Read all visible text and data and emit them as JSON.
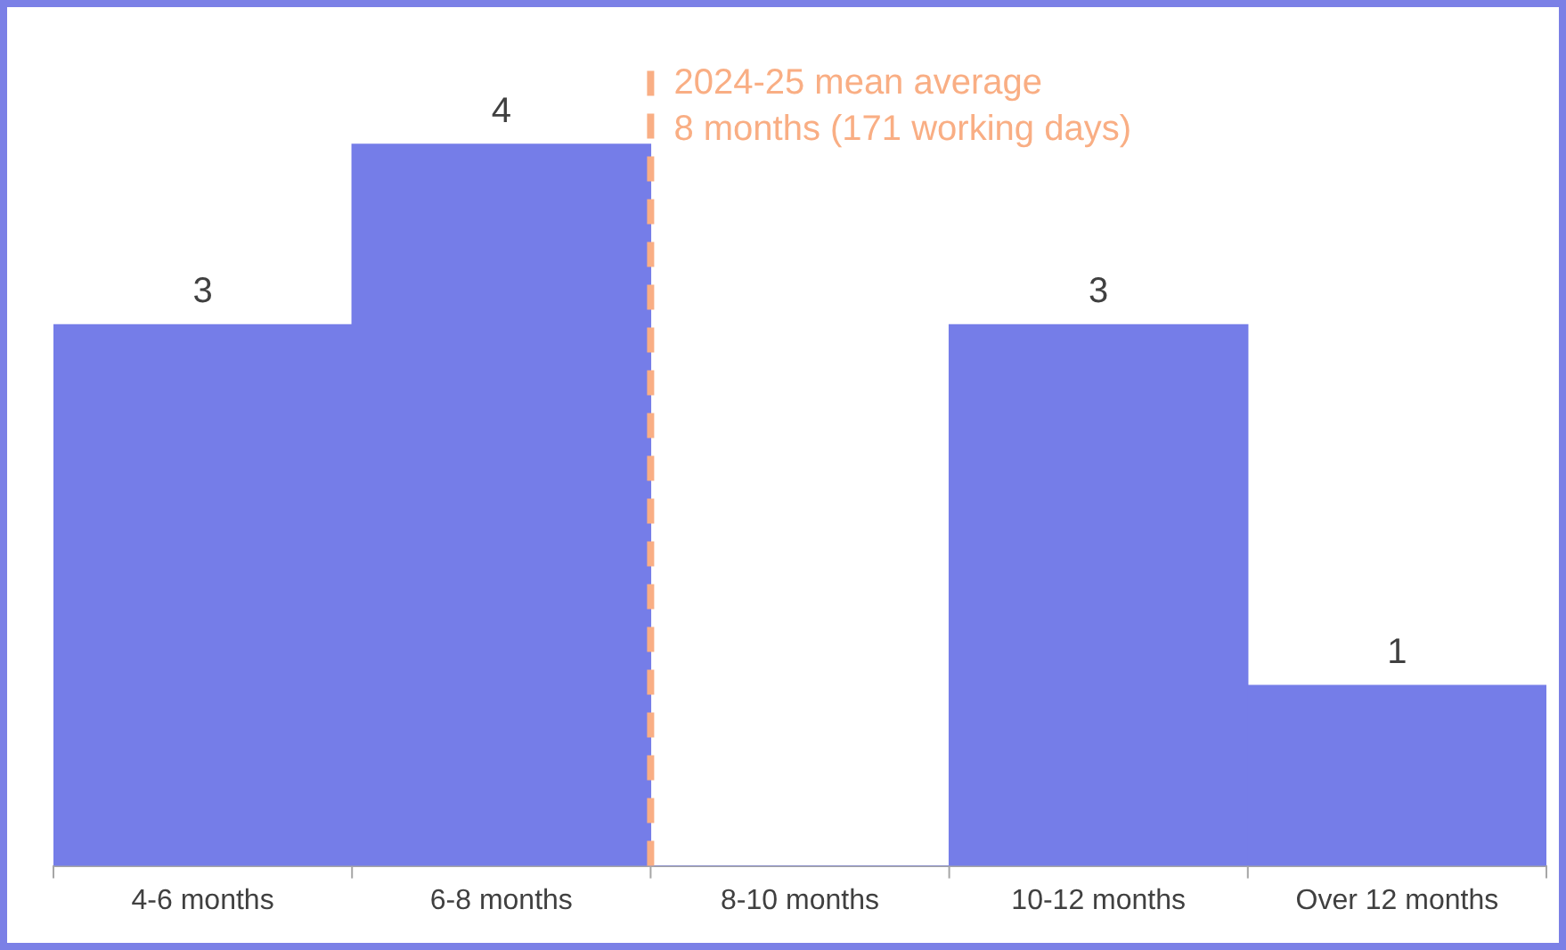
{
  "chart_data": {
    "type": "bar",
    "categories": [
      "4-6 months",
      "6-8 months",
      "8-10 months",
      "10-12 months",
      "Over 12 months"
    ],
    "values": [
      3,
      4,
      0,
      3,
      1
    ],
    "value_labels": [
      "3",
      "4",
      null,
      "3",
      "1"
    ],
    "color": "#757de8",
    "tick_labels": "x",
    "ref_lines": [
      {
        "axis": "x",
        "value": "8-10 months",
        "label": "2024-25 mean average\n8 months (171 working days)",
        "color": "#f9ae84",
        "line_style": "dashed"
      }
    ],
    "grid": false,
    "legend": false
  }
}
